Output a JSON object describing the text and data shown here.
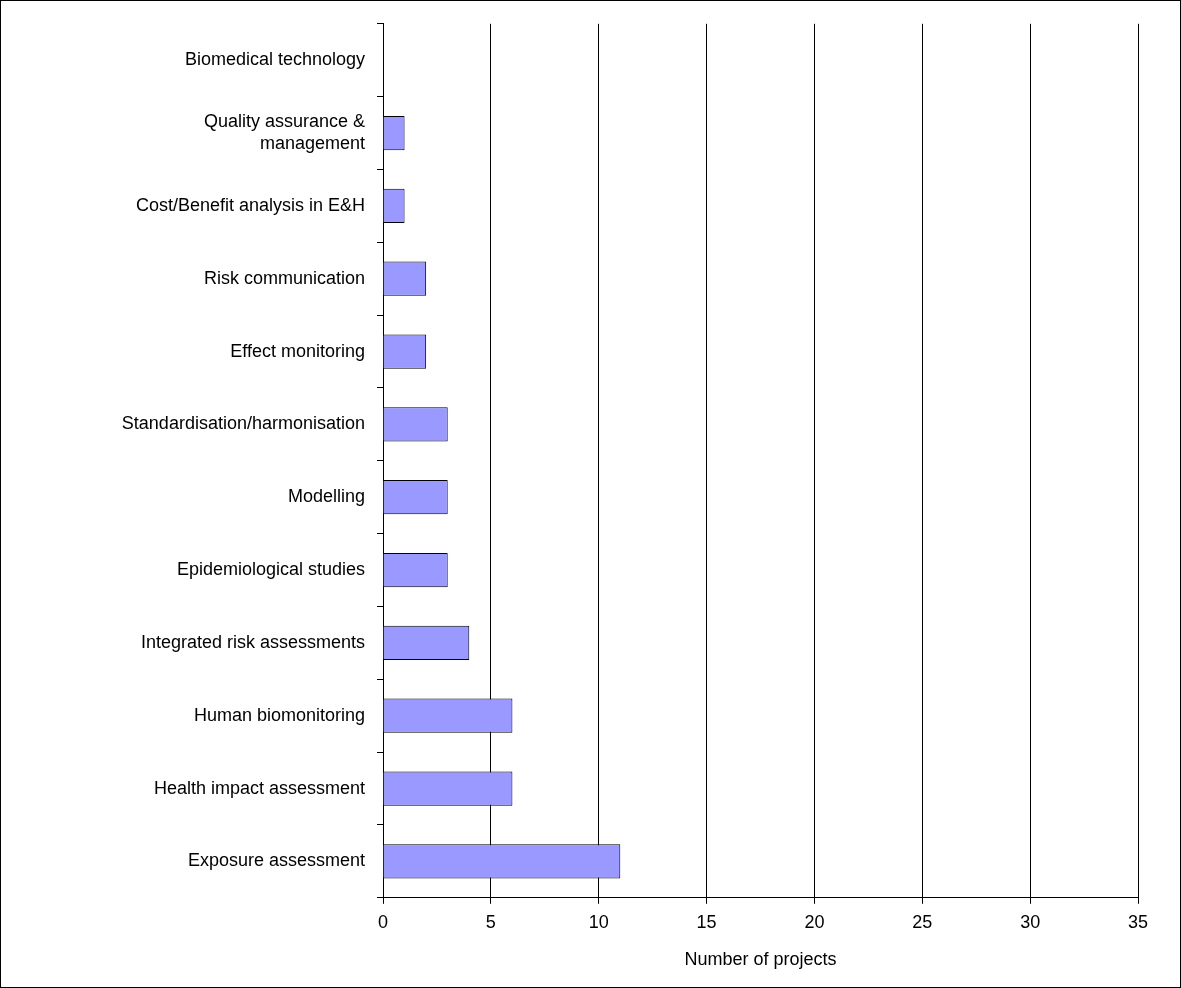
{
  "chart_data": {
    "type": "bar",
    "orientation": "horizontal",
    "xlabel": "Number of projects",
    "categories": [
      "Biomedical technology",
      "Quality assurance & management",
      "Cost/Benefit analysis in E&H",
      "Risk communication",
      "Effect monitoring",
      "Standardisation/harmonisation",
      "Modelling",
      "Epidemiological studies",
      "Integrated risk assessments",
      "Human biomonitoring",
      "Health impact assessment",
      "Exposure assessment"
    ],
    "values": [
      0,
      1,
      1,
      2,
      2,
      3,
      3,
      3,
      4,
      6,
      6,
      11
    ],
    "color": "#9999ff",
    "xlim": [
      0,
      35
    ],
    "xticks": [
      0,
      5,
      10,
      15,
      20,
      25,
      30,
      35
    ],
    "grid": "x",
    "legend": false
  }
}
